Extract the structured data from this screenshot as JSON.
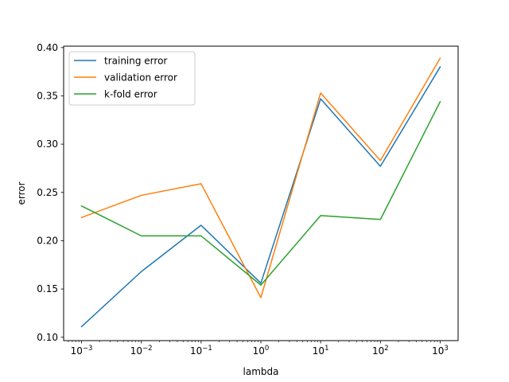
{
  "chart_data": {
    "type": "line",
    "xscale": "log",
    "x": [
      0.001,
      0.01,
      0.1,
      1,
      10,
      100,
      1000
    ],
    "x_tick_labels": [
      {
        "base": "10",
        "exp": "−3"
      },
      {
        "base": "10",
        "exp": "−2"
      },
      {
        "base": "10",
        "exp": "−1"
      },
      {
        "base": "10",
        "exp": "0"
      },
      {
        "base": "10",
        "exp": "1"
      },
      {
        "base": "10",
        "exp": "2"
      },
      {
        "base": "10",
        "exp": "3"
      }
    ],
    "y_ticks": [
      0.1,
      0.15,
      0.2,
      0.25,
      0.3,
      0.35,
      0.4
    ],
    "y_tick_labels": [
      "0.10",
      "0.15",
      "0.20",
      "0.25",
      "0.30",
      "0.35",
      "0.40"
    ],
    "xlabel": "lambda",
    "ylabel": "error",
    "ylim": [
      0.0965,
      0.4015
    ],
    "xlim_log10": [
      -3.3,
      3.3
    ],
    "grid": false,
    "legend_position": "upper-left",
    "series": [
      {
        "name": "training error",
        "color": "#1f77b4",
        "values": [
          0.111,
          0.168,
          0.216,
          0.156,
          0.347,
          0.277,
          0.38
        ]
      },
      {
        "name": "validation error",
        "color": "#ff7f0e",
        "values": [
          0.224,
          0.247,
          0.259,
          0.141,
          0.353,
          0.283,
          0.389
        ]
      },
      {
        "name": "k-fold error",
        "color": "#2ca02c",
        "values": [
          0.236,
          0.205,
          0.205,
          0.154,
          0.226,
          0.222,
          0.344
        ]
      }
    ]
  }
}
